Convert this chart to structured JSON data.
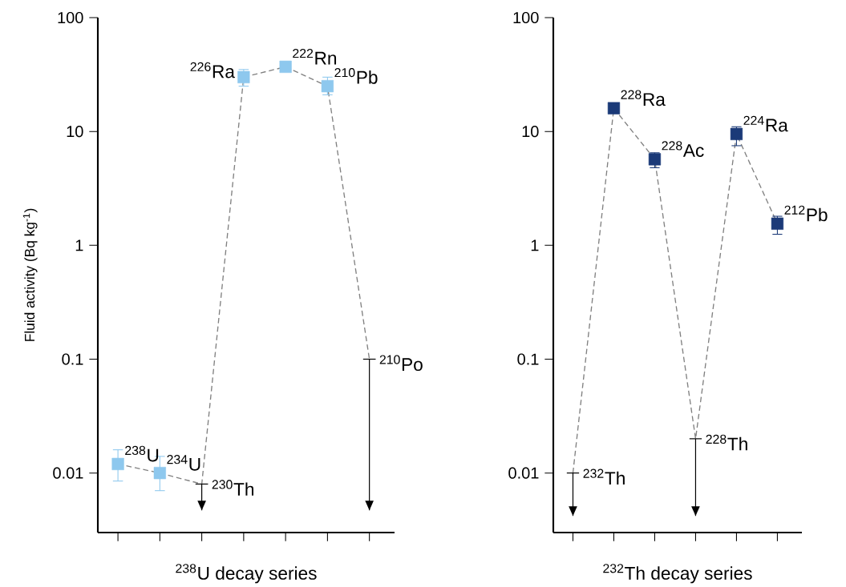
{
  "chart_data": [
    {
      "type": "line",
      "categories": [
        null,
        null,
        null,
        null,
        null,
        null,
        null
      ],
      "xlabel": "$^{238}$U decay series",
      "ylabel": "Fluid activity (Bq kg$^{-1}$)",
      "log": "y",
      "ylim": [
        0.003,
        100
      ],
      "yticks": [
        0.01,
        0.1,
        1,
        10,
        100
      ],
      "annotations": [
        "$^{238}$U",
        "$^{234}$U",
        "$^{230}$Th",
        "$^{226}$Ra",
        "$^{222}$Rn",
        "$^{210}$Pb",
        "$^{210}$Po"
      ],
      "series": [
        {
          "color": "#808080",
          "line_style": "dashed",
          "marker": "none",
          "values": [
            0.012,
            0.01,
            0.008,
            30,
            37,
            25,
            0.1
          ],
          "errors": [
            null,
            null,
            [
              0.0047,
              0.008
            ],
            null,
            null,
            null,
            [
              0.0047,
              0.1
            ]
          ]
        },
        {
          "type": "scatter",
          "color": "#8ec8ee",
          "marker": "square",
          "values": [
            0.012,
            0.01,
            null,
            30,
            37,
            25,
            null
          ],
          "errors": [
            [
              0.0085,
              0.016
            ],
            [
              0.007,
              0.014
            ],
            null,
            [
              25,
              35
            ],
            null,
            [
              21,
              30
            ],
            null
          ]
        }
      ]
    },
    {
      "type": "line",
      "categories": [
        null,
        null,
        null,
        null,
        null,
        null
      ],
      "xlabel": "$^{232}$Th decay series",
      "log": "y",
      "ylim": [
        0.003,
        100
      ],
      "yticks": [
        0.01,
        0.1,
        1,
        10,
        100
      ],
      "annotations": [
        "$^{232}$Th",
        "$^{228}$Ra",
        "$^{228}$Ac",
        "$^{228}$Th",
        "$^{224}$Ra",
        "$^{212}$Pb"
      ],
      "series": [
        {
          "color": "#808080",
          "line_style": "dashed",
          "marker": "none",
          "values": [
            0.01,
            16,
            5.7,
            0.02,
            9.5,
            1.55
          ],
          "errors": [
            [
              0.0042,
              0.01
            ],
            null,
            null,
            [
              0.0042,
              0.02
            ],
            null,
            null
          ]
        },
        {
          "type": "scatter",
          "color": "#1b3a78",
          "marker": "square",
          "values": [
            null,
            16,
            5.7,
            null,
            9.5,
            1.55
          ],
          "errors": [
            null,
            null,
            [
              4.8,
              6.5
            ],
            null,
            [
              7.5,
              11
            ],
            [
              1.25,
              1.8
            ]
          ]
        }
      ]
    }
  ]
}
